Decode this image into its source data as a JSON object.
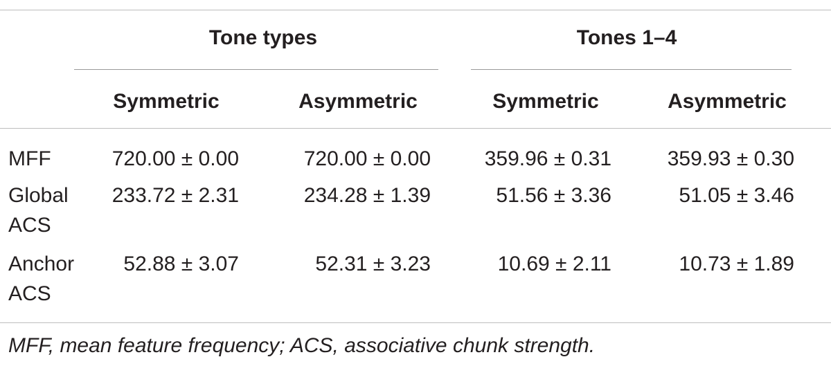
{
  "table": {
    "group_headers": [
      "Tone types",
      "Tones 1–4"
    ],
    "sub_headers": [
      "Symmetric",
      "Asymmetric",
      "Symmetric",
      "Asymmetric"
    ],
    "rows": [
      [
        "MFF",
        "720.00 ± 0.00",
        "720.00 ± 0.00",
        "359.96 ± 0.31",
        "359.93 ± 0.30"
      ],
      [
        "Global ACS",
        "233.72 ± 2.31",
        "234.28 ± 1.39",
        "51.56 ± 3.36",
        "51.05 ± 3.46"
      ],
      [
        "Anchor ACS",
        "52.88 ± 3.07",
        "52.31 ± 3.23",
        "10.69 ± 2.11",
        "10.73 ± 1.89"
      ]
    ],
    "footnote": "MFF, mean feature frequency; ACS, associative chunk strength."
  }
}
